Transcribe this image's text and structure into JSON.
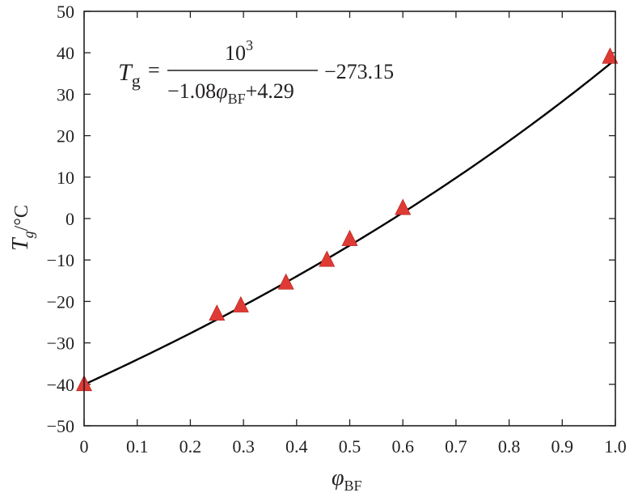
{
  "chart_data": {
    "type": "scatter",
    "xlabel": {
      "symbol": "φ",
      "subscript": "BF"
    },
    "ylabel": {
      "symbol": "T",
      "subscript": "g",
      "unit": "/°C"
    },
    "xlim": [
      0,
      1.0
    ],
    "ylim": [
      -50,
      50
    ],
    "x_ticks": [
      0,
      0.1,
      0.2,
      0.3,
      0.4,
      0.5,
      0.6,
      0.7,
      0.8,
      0.9,
      1.0
    ],
    "x_tick_labels": [
      "0",
      "0.1",
      "0.2",
      "0.3",
      "0.4",
      "0.5",
      "0.6",
      "0.7",
      "0.8",
      "0.9",
      "1.0"
    ],
    "y_ticks": [
      -50,
      -40,
      -30,
      -20,
      -10,
      0,
      10,
      20,
      30,
      40,
      50
    ],
    "y_tick_labels": [
      "−50",
      "−40",
      "−30",
      "−20",
      "−10",
      "0",
      "10",
      "20",
      "30",
      "40",
      "50"
    ],
    "grid": false,
    "series": [
      {
        "kind": "scatter",
        "marker": "triangle",
        "color": "#e03a34",
        "points": [
          {
            "x": 0.0,
            "y": -40.0
          },
          {
            "x": 0.25,
            "y": -23.0
          },
          {
            "x": 0.295,
            "y": -21.0
          },
          {
            "x": 0.38,
            "y": -15.5
          },
          {
            "x": 0.457,
            "y": -10.0
          },
          {
            "x": 0.5,
            "y": -5.0
          },
          {
            "x": 0.6,
            "y": 2.5
          },
          {
            "x": 0.99,
            "y": 39.0
          }
        ]
      },
      {
        "kind": "line",
        "color": "#000000",
        "formula": {
          "a": -1.08,
          "b": 4.29,
          "scale": 1000,
          "offset": -273.15
        },
        "x_range": [
          0,
          1.0
        ]
      }
    ],
    "annotation": {
      "lhs_symbol": "T",
      "lhs_subscript": "g",
      "equals": "=",
      "numerator_base": "10",
      "numerator_exp": "3",
      "denominator_pre": "−1.08",
      "denominator_symbol": "φ",
      "denominator_subscript": "BF",
      "denominator_post": "+4.29",
      "tail": "−273.15"
    }
  }
}
